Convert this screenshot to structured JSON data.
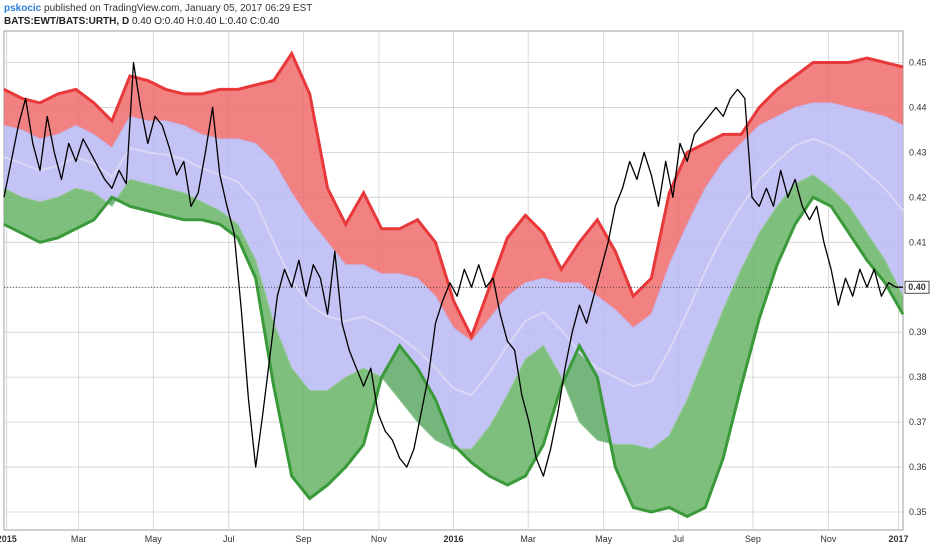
{
  "header": {
    "author": "pskocic",
    "published": "published on TradingView.com, January 05, 2017 06:29 EST",
    "symbol": "BATS:EWT/BATS:URTH, D",
    "ohlc": "0.40 O:0.40 H:0.40 L:0.40 C:0.40"
  },
  "chart_data": {
    "type": "line",
    "title": "",
    "xlabel": "",
    "ylabel": "",
    "ylim": [
      0.346,
      0.457
    ],
    "grid": true,
    "last_value_label": "0.40",
    "last_value": 0.4,
    "y_ticks": [
      "0.35",
      "0.36",
      "0.37",
      "0.38",
      "0.39",
      "0.40",
      "0.41",
      "0.42",
      "0.43",
      "0.44",
      "0.45"
    ],
    "x_tick_labels": [
      "2015",
      "Mar",
      "May",
      "Jul",
      "Sep",
      "Nov",
      "2016",
      "Mar",
      "May",
      "Jul",
      "Sep",
      "Nov",
      "2017"
    ],
    "colors": {
      "upper_band": "#f06b6b",
      "middle_band": "#b9b9f3",
      "lower_band": "#67b467",
      "upper_line": "#e8383a",
      "lower_line": "#3a9a3a",
      "price": "#000000"
    },
    "band_x": [
      0,
      0.02,
      0.04,
      0.06,
      0.08,
      0.1,
      0.12,
      0.14,
      0.16,
      0.18,
      0.2,
      0.22,
      0.24,
      0.26,
      0.28,
      0.3,
      0.32,
      0.34,
      0.36,
      0.38,
      0.4,
      0.42,
      0.44,
      0.46,
      0.48,
      0.5,
      0.52,
      0.54,
      0.56,
      0.58,
      0.6,
      0.62,
      0.64,
      0.66,
      0.68,
      0.7,
      0.72,
      0.74,
      0.76,
      0.78,
      0.8,
      0.82,
      0.84,
      0.86,
      0.88,
      0.9,
      0.92,
      0.94,
      0.96,
      0.98,
      1.0
    ],
    "upper": [
      0.444,
      0.442,
      0.441,
      0.443,
      0.444,
      0.441,
      0.437,
      0.447,
      0.446,
      0.444,
      0.443,
      0.443,
      0.444,
      0.444,
      0.445,
      0.446,
      0.452,
      0.443,
      0.422,
      0.414,
      0.421,
      0.413,
      0.413,
      0.415,
      0.41,
      0.397,
      0.389,
      0.4,
      0.411,
      0.416,
      0.412,
      0.404,
      0.41,
      0.415,
      0.408,
      0.398,
      0.402,
      0.421,
      0.43,
      0.432,
      0.434,
      0.434,
      0.44,
      0.444,
      0.447,
      0.45,
      0.45,
      0.45,
      0.451,
      0.45,
      0.449
    ],
    "mid_up": [
      0.436,
      0.435,
      0.433,
      0.434,
      0.436,
      0.434,
      0.431,
      0.438,
      0.437,
      0.437,
      0.436,
      0.434,
      0.433,
      0.433,
      0.432,
      0.428,
      0.421,
      0.415,
      0.41,
      0.405,
      0.405,
      0.403,
      0.403,
      0.402,
      0.398,
      0.391,
      0.388,
      0.393,
      0.398,
      0.401,
      0.402,
      0.401,
      0.401,
      0.398,
      0.395,
      0.391,
      0.394,
      0.405,
      0.414,
      0.422,
      0.428,
      0.432,
      0.436,
      0.438,
      0.44,
      0.441,
      0.441,
      0.44,
      0.439,
      0.438,
      0.436
    ],
    "mid_low": [
      0.422,
      0.42,
      0.419,
      0.42,
      0.422,
      0.421,
      0.418,
      0.424,
      0.423,
      0.422,
      0.421,
      0.419,
      0.417,
      0.414,
      0.406,
      0.392,
      0.382,
      0.377,
      0.377,
      0.38,
      0.382,
      0.38,
      0.375,
      0.37,
      0.366,
      0.364,
      0.364,
      0.369,
      0.376,
      0.384,
      0.387,
      0.38,
      0.37,
      0.366,
      0.365,
      0.365,
      0.364,
      0.367,
      0.375,
      0.385,
      0.395,
      0.404,
      0.412,
      0.418,
      0.423,
      0.425,
      0.422,
      0.418,
      0.412,
      0.406,
      0.398
    ],
    "lower": [
      0.414,
      0.412,
      0.41,
      0.411,
      0.413,
      0.415,
      0.42,
      0.418,
      0.417,
      0.416,
      0.415,
      0.415,
      0.414,
      0.411,
      0.402,
      0.378,
      0.358,
      0.353,
      0.356,
      0.36,
      0.365,
      0.38,
      0.387,
      0.382,
      0.375,
      0.365,
      0.361,
      0.358,
      0.356,
      0.358,
      0.365,
      0.378,
      0.387,
      0.38,
      0.36,
      0.351,
      0.35,
      0.351,
      0.349,
      0.351,
      0.362,
      0.378,
      0.393,
      0.405,
      0.414,
      0.42,
      0.418,
      0.412,
      0.406,
      0.401,
      0.394
    ],
    "price_x": [
      0,
      0.008,
      0.016,
      0.024,
      0.032,
      0.04,
      0.048,
      0.056,
      0.064,
      0.072,
      0.08,
      0.088,
      0.096,
      0.104,
      0.112,
      0.12,
      0.128,
      0.136,
      0.144,
      0.152,
      0.16,
      0.168,
      0.176,
      0.184,
      0.192,
      0.2,
      0.208,
      0.216,
      0.224,
      0.232,
      0.24,
      0.248,
      0.256,
      0.264,
      0.272,
      0.28,
      0.288,
      0.296,
      0.304,
      0.312,
      0.32,
      0.328,
      0.336,
      0.344,
      0.352,
      0.36,
      0.368,
      0.376,
      0.384,
      0.392,
      0.4,
      0.408,
      0.416,
      0.424,
      0.432,
      0.44,
      0.448,
      0.456,
      0.464,
      0.472,
      0.48,
      0.488,
      0.496,
      0.504,
      0.512,
      0.52,
      0.528,
      0.536,
      0.544,
      0.552,
      0.56,
      0.568,
      0.576,
      0.584,
      0.592,
      0.6,
      0.608,
      0.616,
      0.624,
      0.632,
      0.64,
      0.648,
      0.656,
      0.664,
      0.672,
      0.68,
      0.688,
      0.696,
      0.704,
      0.712,
      0.72,
      0.728,
      0.736,
      0.744,
      0.752,
      0.76,
      0.768,
      0.776,
      0.784,
      0.792,
      0.8,
      0.808,
      0.816,
      0.824,
      0.832,
      0.84,
      0.848,
      0.856,
      0.864,
      0.872,
      0.88,
      0.888,
      0.896,
      0.904,
      0.912,
      0.92,
      0.928,
      0.936,
      0.944,
      0.952,
      0.96,
      0.968,
      0.976,
      0.984,
      0.992,
      1.0
    ],
    "price": [
      0.42,
      0.428,
      0.436,
      0.442,
      0.432,
      0.426,
      0.438,
      0.43,
      0.424,
      0.432,
      0.428,
      0.433,
      0.43,
      0.427,
      0.424,
      0.422,
      0.426,
      0.423,
      0.45,
      0.44,
      0.432,
      0.438,
      0.436,
      0.431,
      0.425,
      0.428,
      0.418,
      0.421,
      0.43,
      0.44,
      0.425,
      0.418,
      0.412,
      0.395,
      0.375,
      0.36,
      0.372,
      0.385,
      0.398,
      0.404,
      0.4,
      0.406,
      0.398,
      0.405,
      0.402,
      0.394,
      0.408,
      0.392,
      0.386,
      0.382,
      0.378,
      0.382,
      0.372,
      0.368,
      0.366,
      0.362,
      0.36,
      0.364,
      0.372,
      0.38,
      0.392,
      0.397,
      0.401,
      0.398,
      0.404,
      0.4,
      0.405,
      0.4,
      0.402,
      0.394,
      0.388,
      0.386,
      0.376,
      0.37,
      0.362,
      0.358,
      0.364,
      0.372,
      0.382,
      0.39,
      0.396,
      0.392,
      0.398,
      0.404,
      0.41,
      0.418,
      0.422,
      0.428,
      0.424,
      0.43,
      0.425,
      0.418,
      0.428,
      0.42,
      0.432,
      0.428,
      0.434,
      0.436,
      0.438,
      0.44,
      0.438,
      0.442,
      0.444,
      0.442,
      0.42,
      0.418,
      0.422,
      0.418,
      0.426,
      0.42,
      0.424,
      0.418,
      0.415,
      0.418,
      0.41,
      0.404,
      0.396,
      0.402,
      0.398,
      0.404,
      0.4,
      0.404,
      0.398,
      0.401,
      0.4,
      0.4
    ]
  }
}
